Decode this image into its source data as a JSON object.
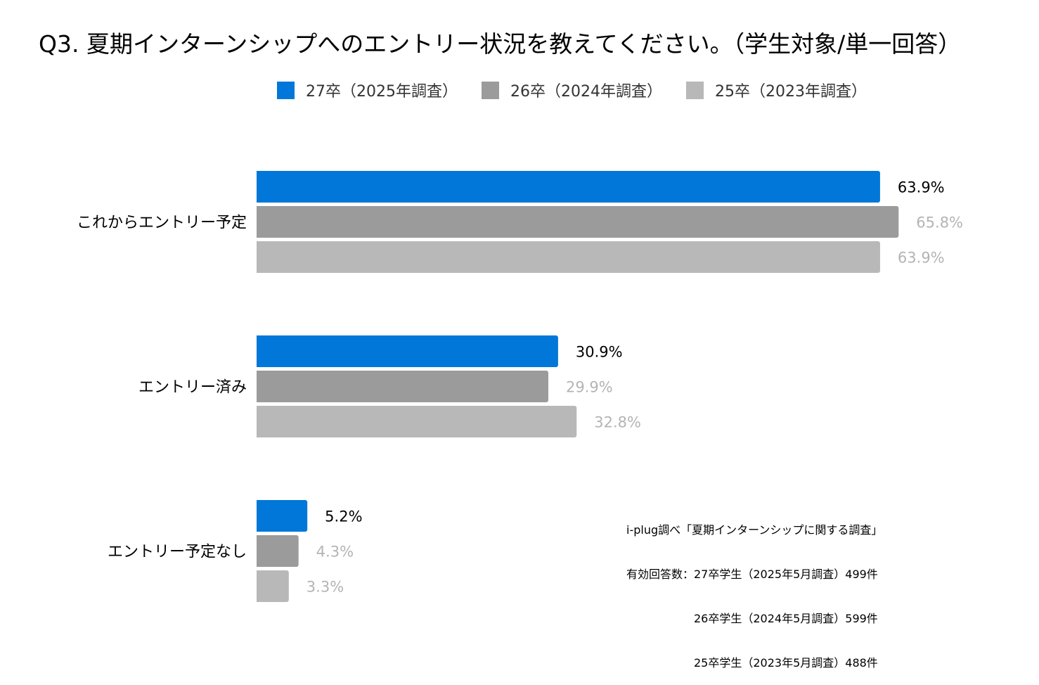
{
  "chart_data": {
    "type": "bar",
    "orientation": "horizontal",
    "title": "Q3. 夏期インターンシップへのエントリー状況を教えてください。（学生対象/単一回答）",
    "categories": [
      "これからエントリー予定",
      "エントリー済み",
      "エントリー予定なし"
    ],
    "series": [
      {
        "name": "27卒（2025年調査）",
        "color": "#0077D9",
        "label_color": "#000000",
        "values": [
          63.9,
          30.9,
          5.2
        ]
      },
      {
        "name": "26卒（2024年調査）",
        "color": "#9B9B9B",
        "label_color": "#B4B4B4",
        "values": [
          65.8,
          29.9,
          4.3
        ]
      },
      {
        "name": "25卒（2023年調査）",
        "color": "#B8B8B8",
        "label_color": "#B4B4B4",
        "values": [
          63.9,
          32.8,
          3.3
        ]
      }
    ],
    "value_suffix": "%",
    "xlim": [
      0,
      100
    ],
    "grid": false,
    "legend_position": "top"
  },
  "source_note": {
    "lines": [
      "i-plug調べ「夏期インターンシップに関する調査」",
      "有効回答数：27卒学生（2025年5月調査）499件",
      "　　　　　　26卒学生（2024年5月調査）599件",
      "　　　　　　25卒学生（2023年5月調査）488件"
    ]
  }
}
